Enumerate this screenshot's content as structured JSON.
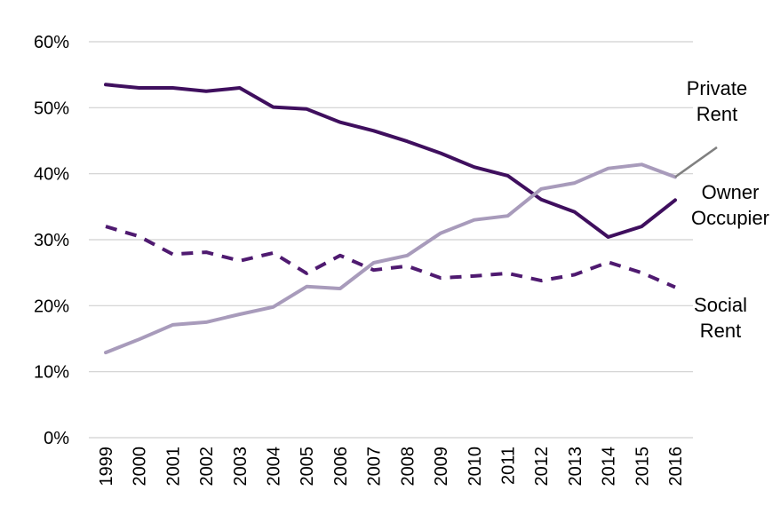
{
  "chart_data": {
    "type": "line",
    "title": "",
    "xlabel": "",
    "ylabel": "",
    "x": [
      "1999",
      "2000",
      "2001",
      "2002",
      "2003",
      "2004",
      "2005",
      "2006",
      "2007",
      "2008",
      "2009",
      "2010",
      "2011",
      "2012",
      "2013",
      "2014",
      "2015",
      "2016"
    ],
    "ylim": [
      0,
      60
    ],
    "yticks": [
      "0%",
      "10%",
      "20%",
      "30%",
      "40%",
      "50%",
      "60%"
    ],
    "grid": true,
    "series": [
      {
        "name": "Owner Occupier",
        "label_lines": [
          "Owner",
          "Occupier"
        ],
        "color": "#3f0f5e",
        "dash": "solid",
        "values": [
          53.5,
          53.0,
          53.0,
          52.5,
          53.0,
          50.1,
          49.8,
          47.8,
          46.5,
          44.9,
          43.1,
          41.0,
          39.7,
          36.1,
          34.2,
          30.4,
          32.0,
          36.0
        ]
      },
      {
        "name": "Private Rent",
        "label_lines": [
          "Private",
          "Rent"
        ],
        "color": "#a89bbb",
        "dash": "solid",
        "values": [
          12.9,
          14.9,
          17.1,
          17.5,
          18.7,
          19.8,
          22.9,
          22.6,
          26.5,
          27.6,
          31.0,
          33.0,
          33.6,
          37.7,
          38.6,
          40.8,
          41.4,
          39.5
        ],
        "extension": {
          "color": "#808080",
          "to_value": 44.0
        }
      },
      {
        "name": "Social Rent",
        "label_lines": [
          "Social",
          "Rent"
        ],
        "color": "#4f1a70",
        "dash": "dashed",
        "values": [
          32.0,
          30.5,
          27.8,
          28.1,
          26.8,
          28.0,
          24.9,
          27.6,
          25.4,
          26.0,
          24.2,
          24.5,
          24.9,
          23.8,
          24.7,
          26.6,
          25.0,
          22.8
        ]
      }
    ]
  }
}
